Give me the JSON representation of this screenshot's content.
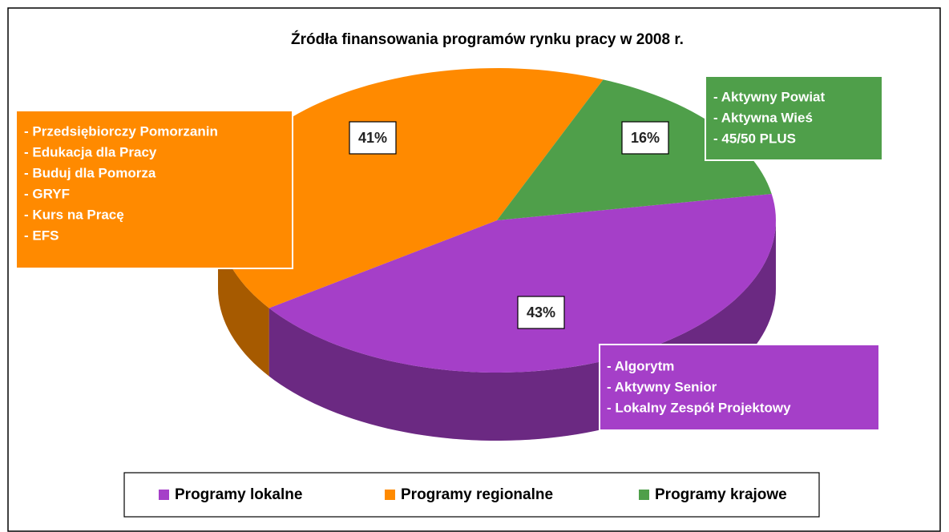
{
  "chart_data": {
    "type": "pie3d",
    "title": "Źródła finansowania programów rynku pracy w 2008 r.",
    "categories": [
      "Programy lokalne",
      "Programy regionalne",
      "Programy krajowe"
    ],
    "values": [
      43,
      41,
      16
    ],
    "value_labels": [
      "43%",
      "41%",
      "16%"
    ],
    "colors": [
      "#a53fc8",
      "#ff8a00",
      "#4f9f4a"
    ],
    "programs": [
      [
        "- Algorytm",
        "- Aktywny Senior",
        "- Lokalny Zespół  Projektowy"
      ],
      [
        "- Przedsiębiorczy Pomorzanin",
        "- Edukacja dla Pracy",
        "- Buduj dla Pomorza",
        "- GRYF",
        "- Kurs na Pracę",
        "- EFS"
      ],
      [
        "- Aktywny Powiat",
        "- Aktywna Wieś",
        "- 45/50 PLUS"
      ]
    ],
    "legend": "bottom"
  }
}
